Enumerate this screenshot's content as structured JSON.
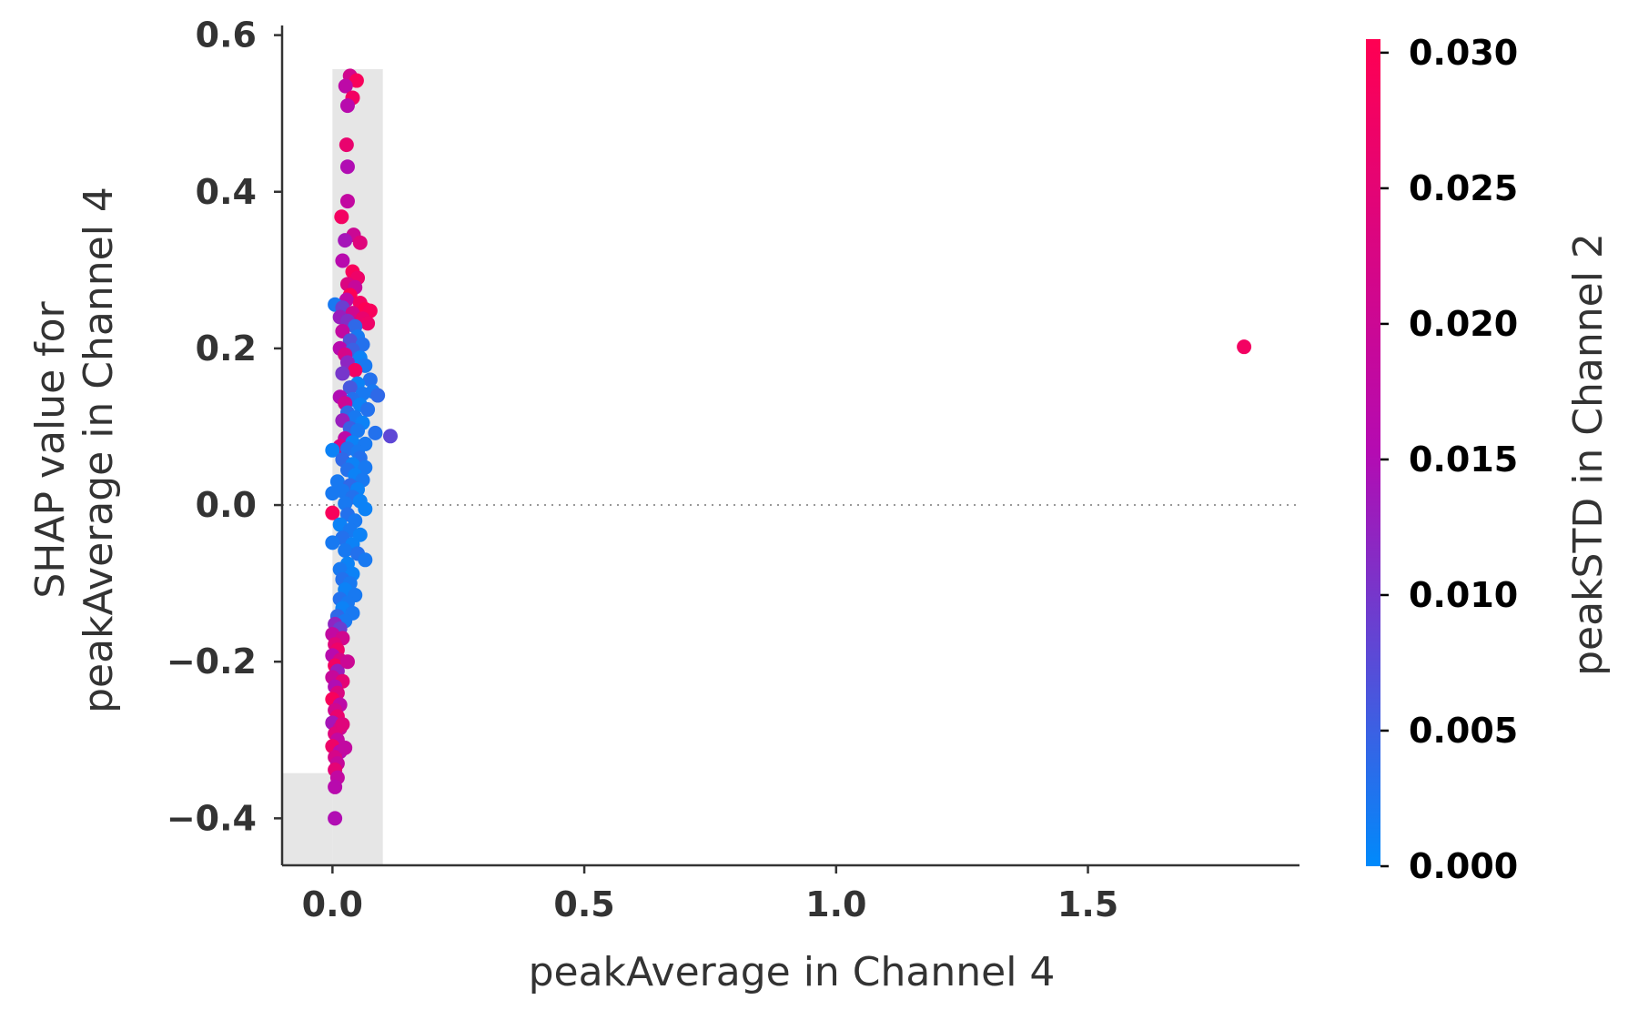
{
  "chart_data": {
    "type": "scatter",
    "title": "",
    "xlabel": "peakAverage in Channel 4",
    "ylabel": [
      "SHAP value for",
      "peakAverage in Channel 4"
    ],
    "colorbar_label": "peakSTD in Channel 2",
    "xlim": [
      -0.1,
      1.92
    ],
    "ylim": [
      -0.46,
      0.61
    ],
    "x_ticks": [
      0.0,
      0.5,
      1.0,
      1.5
    ],
    "x_tick_labels": [
      "0.0",
      "0.5",
      "1.0",
      "1.5"
    ],
    "y_ticks": [
      0.6,
      0.4,
      0.2,
      0.0,
      -0.2,
      -0.4
    ],
    "y_tick_labels": [
      "0.6",
      "0.4",
      "0.2",
      "0.0",
      "−0.2",
      "−0.4"
    ],
    "color_range": [
      0.0,
      0.0305
    ],
    "colorbar_ticks": [
      0.03,
      0.025,
      0.02,
      0.015,
      0.01,
      0.005,
      0.0
    ],
    "colorbar_tick_labels": [
      "0.030",
      "0.025",
      "0.020",
      "0.015",
      "0.010",
      "0.005",
      "0.000"
    ],
    "colors": {
      "low": "#008afb",
      "mid": "#b40bb2",
      "high": "#ff0052",
      "axis": "#333333",
      "histogram": "#e6e6e6",
      "zero_line": "#999999"
    },
    "histogram": [
      {
        "x0": -0.1,
        "x1": 0.0,
        "height": 0.11
      },
      {
        "x0": 0.0,
        "x1": 0.1,
        "height": 0.95
      }
    ],
    "points": [
      [
        0.035,
        0.548,
        0.021
      ],
      [
        0.048,
        0.542,
        0.029
      ],
      [
        0.026,
        0.535,
        0.017
      ],
      [
        0.04,
        0.52,
        0.028
      ],
      [
        0.03,
        0.51,
        0.016
      ],
      [
        0.028,
        0.46,
        0.026
      ],
      [
        0.03,
        0.432,
        0.015
      ],
      [
        0.03,
        0.388,
        0.018
      ],
      [
        0.018,
        0.368,
        0.028
      ],
      [
        0.042,
        0.345,
        0.02
      ],
      [
        0.025,
        0.338,
        0.014
      ],
      [
        0.055,
        0.335,
        0.024
      ],
      [
        0.02,
        0.312,
        0.016
      ],
      [
        0.04,
        0.298,
        0.029
      ],
      [
        0.05,
        0.29,
        0.027
      ],
      [
        0.03,
        0.282,
        0.023
      ],
      [
        0.045,
        0.278,
        0.019
      ],
      [
        0.035,
        0.268,
        0.03
      ],
      [
        0.028,
        0.262,
        0.017
      ],
      [
        0.055,
        0.258,
        0.028
      ],
      [
        0.005,
        0.256,
        0.002
      ],
      [
        0.02,
        0.252,
        0.009
      ],
      [
        0.065,
        0.25,
        0.03
      ],
      [
        0.04,
        0.245,
        0.021
      ],
      [
        0.075,
        0.248,
        0.029
      ],
      [
        0.015,
        0.24,
        0.013
      ],
      [
        0.06,
        0.238,
        0.026
      ],
      [
        0.03,
        0.235,
        0.011
      ],
      [
        0.07,
        0.232,
        0.027
      ],
      [
        0.045,
        0.228,
        0.004
      ],
      [
        0.02,
        0.222,
        0.018
      ],
      [
        0.05,
        0.215,
        0.002
      ],
      [
        0.035,
        0.21,
        0.007
      ],
      [
        0.06,
        0.205,
        0.003
      ],
      [
        0.015,
        0.2,
        0.016
      ],
      [
        0.04,
        0.198,
        0.005
      ],
      [
        0.025,
        0.192,
        0.022
      ],
      [
        0.055,
        0.188,
        0.001
      ],
      [
        0.03,
        0.182,
        0.012
      ],
      [
        0.065,
        0.178,
        0.002
      ],
      [
        0.045,
        0.172,
        0.028
      ],
      [
        0.02,
        0.168,
        0.01
      ],
      [
        0.075,
        0.16,
        0.003
      ],
      [
        0.05,
        0.155,
        0.001
      ],
      [
        0.035,
        0.15,
        0.006
      ],
      [
        0.08,
        0.145,
        0.002
      ],
      [
        0.06,
        0.142,
        0.002
      ],
      [
        0.09,
        0.14,
        0.004
      ],
      [
        0.015,
        0.138,
        0.015
      ],
      [
        0.04,
        0.135,
        0.003
      ],
      [
        0.025,
        0.13,
        0.02
      ],
      [
        0.055,
        0.128,
        0.001
      ],
      [
        0.07,
        0.122,
        0.003
      ],
      [
        0.03,
        0.118,
        0.004
      ],
      [
        0.045,
        0.112,
        0.002
      ],
      [
        0.02,
        0.108,
        0.013
      ],
      [
        0.06,
        0.105,
        0.001
      ],
      [
        0.035,
        0.098,
        0.005
      ],
      [
        0.05,
        0.095,
        0.002
      ],
      [
        0.085,
        0.092,
        0.003
      ],
      [
        0.115,
        0.088,
        0.008
      ],
      [
        0.025,
        0.085,
        0.017
      ],
      [
        0.04,
        0.08,
        0.001
      ],
      [
        0.065,
        0.078,
        0.002
      ],
      [
        0.015,
        0.075,
        0.023
      ],
      [
        0.03,
        0.072,
        0.003
      ],
      [
        0.0,
        0.07,
        0.001
      ],
      [
        0.05,
        0.068,
        0.002
      ],
      [
        0.055,
        0.06,
        0.003
      ],
      [
        0.02,
        0.058,
        0.004
      ],
      [
        0.04,
        0.052,
        0.001
      ],
      [
        0.065,
        0.048,
        0.002
      ],
      [
        0.03,
        0.045,
        0.003
      ],
      [
        0.045,
        0.038,
        0.001
      ],
      [
        0.06,
        0.032,
        0.002
      ],
      [
        0.01,
        0.03,
        0.002
      ],
      [
        0.035,
        0.025,
        0.004
      ],
      [
        0.05,
        0.02,
        0.001
      ],
      [
        0.02,
        0.018,
        0.002
      ],
      [
        0.0,
        0.015,
        0.002
      ],
      [
        0.04,
        0.01,
        0.003
      ],
      [
        0.055,
        0.005,
        0.001
      ],
      [
        0.025,
        0.002,
        0.002
      ],
      [
        0.065,
        -0.005,
        0.001
      ],
      [
        0.0,
        -0.01,
        0.029
      ],
      [
        0.03,
        -0.012,
        0.003
      ],
      [
        0.045,
        -0.02,
        0.002
      ],
      [
        0.015,
        -0.025,
        0.001
      ],
      [
        0.035,
        -0.032,
        0.002
      ],
      [
        0.055,
        -0.038,
        0.001
      ],
      [
        0.02,
        -0.042,
        0.003
      ],
      [
        0.0,
        -0.048,
        0.002
      ],
      [
        0.04,
        -0.05,
        0.001
      ],
      [
        0.025,
        -0.058,
        0.002
      ],
      [
        0.05,
        -0.062,
        0.003
      ],
      [
        0.065,
        -0.07,
        0.002
      ],
      [
        0.03,
        -0.075,
        0.001
      ],
      [
        0.015,
        -0.082,
        0.002
      ],
      [
        0.04,
        -0.088,
        0.001
      ],
      [
        0.02,
        -0.095,
        0.003
      ],
      [
        0.035,
        -0.1,
        0.002
      ],
      [
        0.025,
        -0.108,
        0.001
      ],
      [
        0.045,
        -0.115,
        0.002
      ],
      [
        0.015,
        -0.12,
        0.003
      ],
      [
        0.03,
        -0.125,
        0.002
      ],
      [
        0.02,
        -0.132,
        0.001
      ],
      [
        0.04,
        -0.138,
        0.002
      ],
      [
        0.01,
        -0.142,
        0.004
      ],
      [
        0.025,
        -0.148,
        0.002
      ],
      [
        0.005,
        -0.152,
        0.012
      ],
      [
        0.015,
        -0.158,
        0.009
      ],
      [
        0.0,
        -0.165,
        0.018
      ],
      [
        0.02,
        -0.17,
        0.021
      ],
      [
        0.005,
        -0.178,
        0.024
      ],
      [
        0.01,
        -0.185,
        0.027
      ],
      [
        0.0,
        -0.192,
        0.016
      ],
      [
        0.015,
        -0.198,
        0.022
      ],
      [
        0.005,
        -0.205,
        0.028
      ],
      [
        0.01,
        -0.212,
        0.013
      ],
      [
        0.0,
        -0.22,
        0.019
      ],
      [
        0.02,
        -0.225,
        0.025
      ],
      [
        0.005,
        -0.232,
        0.015
      ],
      [
        0.01,
        -0.24,
        0.023
      ],
      [
        0.0,
        -0.248,
        0.029
      ],
      [
        0.015,
        -0.255,
        0.017
      ],
      [
        0.005,
        -0.262,
        0.021
      ],
      [
        0.01,
        -0.27,
        0.026
      ],
      [
        0.0,
        -0.278,
        0.014
      ],
      [
        0.015,
        -0.285,
        0.02
      ],
      [
        0.005,
        -0.292,
        0.024
      ],
      [
        0.01,
        -0.3,
        0.018
      ],
      [
        0.0,
        -0.308,
        0.027
      ],
      [
        0.015,
        -0.315,
        0.016
      ],
      [
        0.005,
        -0.322,
        0.022
      ],
      [
        0.01,
        -0.33,
        0.019
      ],
      [
        0.005,
        -0.338,
        0.025
      ],
      [
        0.01,
        -0.348,
        0.018
      ],
      [
        0.005,
        -0.36,
        0.016
      ],
      [
        0.005,
        -0.4,
        0.015
      ],
      [
        0.03,
        -0.2,
        0.02
      ],
      [
        0.02,
        -0.28,
        0.024
      ],
      [
        0.025,
        -0.31,
        0.018
      ],
      [
        1.81,
        0.202,
        0.028
      ]
    ]
  }
}
